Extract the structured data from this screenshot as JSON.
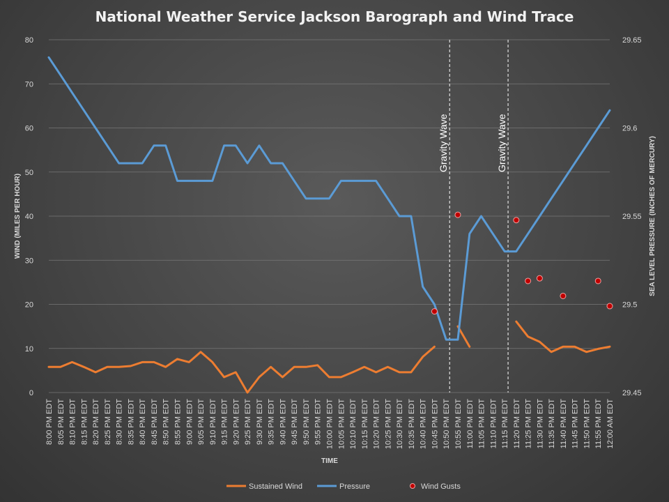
{
  "chart_data": {
    "type": "line",
    "title": "National Weather Service Jackson Barograph and Wind Trace",
    "xlabel": "TIME",
    "ylabel_left": "WIND (MILES PER HOUR)",
    "ylabel_right": "SEA LEVEL PRESSURE (INCHES OF MERCURY)",
    "ylim_left": [
      0,
      80
    ],
    "ylim_right": [
      29.45,
      29.65
    ],
    "yticks_left": [
      "0",
      "10",
      "20",
      "30",
      "40",
      "50",
      "60",
      "70",
      "80"
    ],
    "yticks_right": [
      "29.45",
      "29.5",
      "29.55",
      "29.6",
      "29.65"
    ],
    "grid": true,
    "legend_position": "bottom",
    "x": [
      "8:00 PM EDT",
      "8:05 PM EDT",
      "8:10 PM EDT",
      "8:15 PM EDT",
      "8:20 PM EDT",
      "8:25 PM EDT",
      "8:30 PM EDT",
      "8:35 PM EDT",
      "8:40 PM EDT",
      "8:45 PM EDT",
      "8:50 PM EDT",
      "8:55 PM EDT",
      "9:00 PM EDT",
      "9:05 PM EDT",
      "9:10 PM EDT",
      "9:15 PM EDT",
      "9:20 PM EDT",
      "9:25 PM EDT",
      "9:30 PM EDT",
      "9:35 PM EDT",
      "9:40 PM EDT",
      "9:45 PM EDT",
      "9:50 PM EDT",
      "9:55 PM EDT",
      "10:00 PM EDT",
      "10:05 PM EDT",
      "10:10 PM EDT",
      "10:15 PM EDT",
      "10:20 PM EDT",
      "10:25 PM EDT",
      "10:30 PM EDT",
      "10:35 PM EDT",
      "10:40 PM EDT",
      "10:45 PM EDT",
      "10:50 PM EDT",
      "10:55 PM EDT",
      "11:00 PM EDT",
      "11:05 PM EDT",
      "11:10 PM EDT",
      "11:15 PM EDT",
      "11:20 PM EDT",
      "11:25 PM EDT",
      "11:30 PM EDT",
      "11:35 PM EDT",
      "11:40 PM EDT",
      "11:45 PM EDT",
      "11:50 PM EDT",
      "11:55 PM EDT",
      "12:00 AM EDT"
    ],
    "series": [
      {
        "name": "Sustained Wind",
        "axis": "left",
        "color": "#ed7d31",
        "values": [
          5.8,
          5.8,
          6.9,
          5.8,
          4.6,
          5.8,
          5.8,
          6.0,
          6.9,
          6.9,
          5.8,
          7.6,
          6.9,
          9.2,
          6.9,
          3.5,
          4.6,
          0,
          3.5,
          5.8,
          3.5,
          5.8,
          5.8,
          6.2,
          3.5,
          3.5,
          4.6,
          5.8,
          4.6,
          5.8,
          4.6,
          4.6,
          8.1,
          10.4,
          null,
          15.0,
          10.4,
          null,
          null,
          null,
          16.1,
          12.7,
          11.5,
          9.2,
          10.4,
          10.4,
          9.2,
          9.9,
          10.4
        ]
      },
      {
        "name": "Pressure",
        "axis": "right",
        "color": "#5b9bd5",
        "values": [
          29.64,
          29.63,
          29.62,
          29.61,
          29.6,
          29.59,
          29.58,
          29.58,
          29.58,
          29.59,
          29.59,
          29.57,
          29.57,
          29.57,
          29.57,
          29.59,
          29.59,
          29.58,
          29.59,
          29.58,
          29.58,
          29.57,
          29.56,
          29.56,
          29.56,
          29.57,
          29.57,
          29.57,
          29.57,
          29.56,
          29.55,
          29.55,
          29.51,
          29.5,
          29.48,
          29.48,
          29.54,
          29.55,
          29.54,
          29.53,
          29.53,
          29.54,
          29.55,
          29.56,
          29.57,
          29.58,
          29.59,
          29.6,
          29.61
        ]
      },
      {
        "name": "Wind Gusts",
        "axis": "left",
        "color": "#c00000",
        "type": "scatter",
        "values": [
          null,
          null,
          null,
          null,
          null,
          null,
          null,
          null,
          null,
          null,
          null,
          null,
          null,
          null,
          null,
          null,
          null,
          null,
          null,
          null,
          null,
          null,
          null,
          null,
          null,
          null,
          null,
          null,
          null,
          null,
          null,
          null,
          null,
          18.4,
          null,
          40.3,
          null,
          null,
          null,
          null,
          39.1,
          25.3,
          25.9,
          null,
          21.9,
          null,
          null,
          25.3,
          19.6
        ]
      }
    ],
    "annotations": [
      {
        "text": "Gravity Wave",
        "x": "10:50 PM EDT"
      },
      {
        "text": "Gravity Wave",
        "x": "11:15 PM EDT"
      }
    ]
  }
}
